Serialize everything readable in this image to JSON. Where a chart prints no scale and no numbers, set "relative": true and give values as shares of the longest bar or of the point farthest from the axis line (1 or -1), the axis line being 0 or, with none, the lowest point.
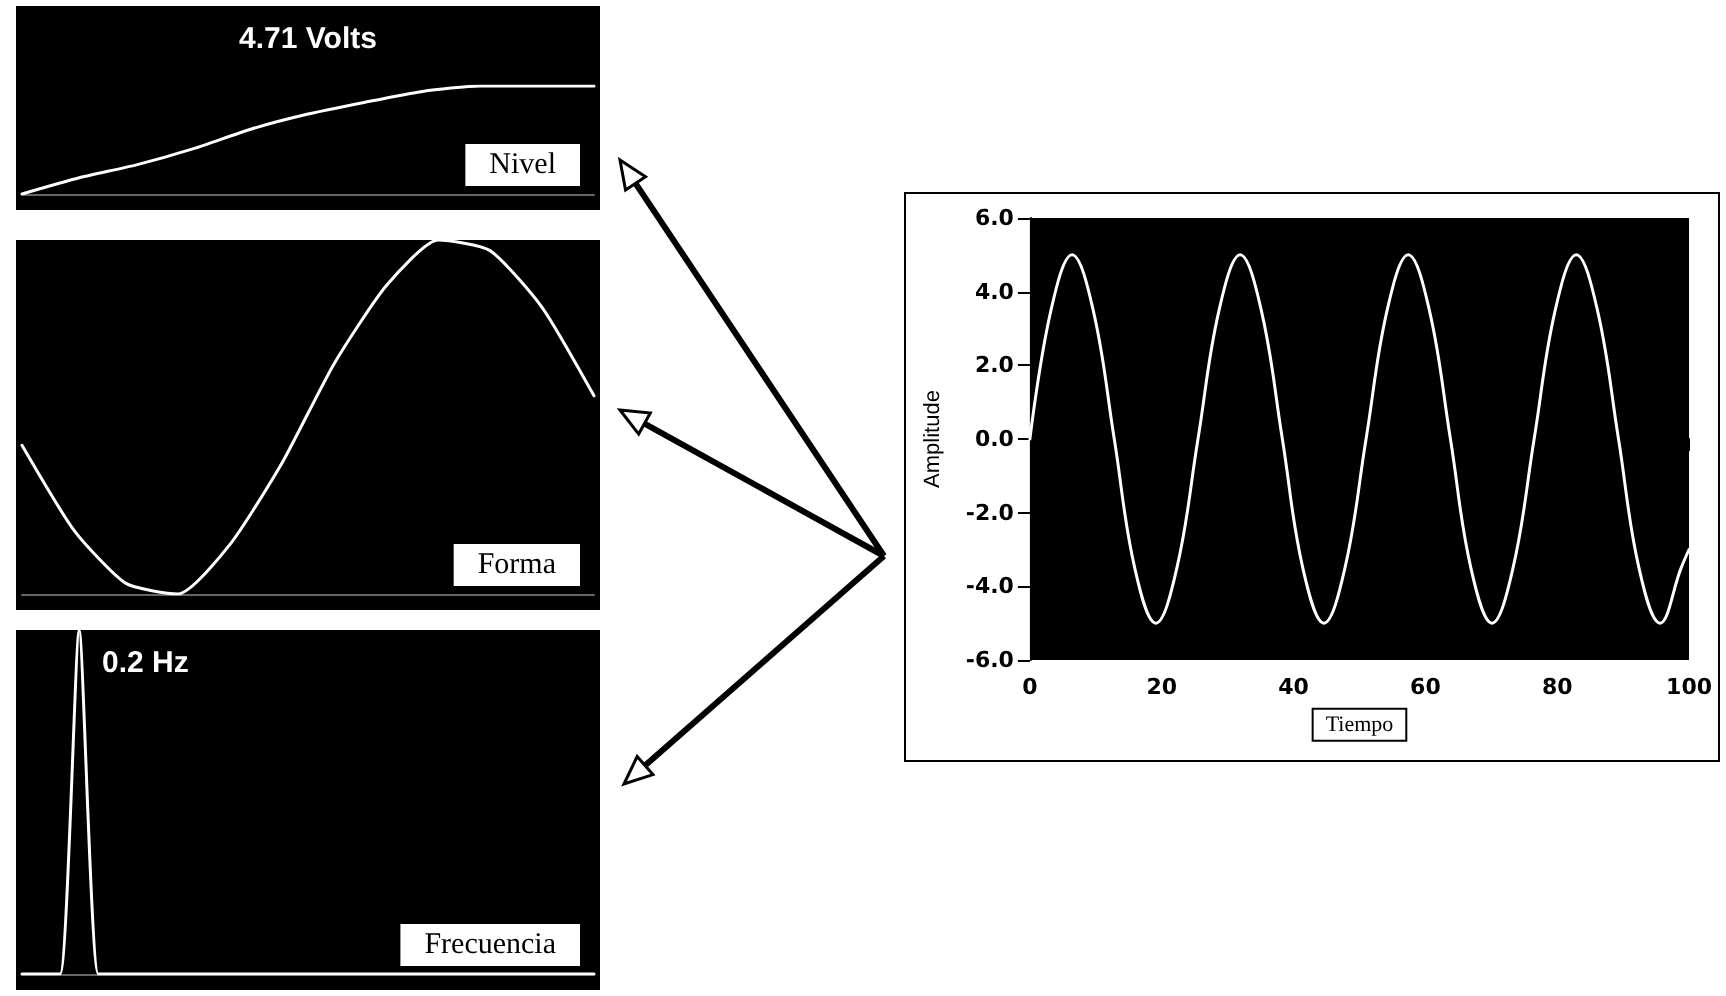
{
  "chart_data": [
    {
      "type": "line",
      "title": "4.71 Volts",
      "annotations": [
        "Nivel"
      ],
      "relative": true,
      "categories": [
        null,
        null,
        null,
        null,
        null,
        null,
        null,
        null,
        null,
        null,
        null
      ],
      "series": [
        {
          "color": "#ffffff",
          "values": [
            0,
            0.15,
            0.27,
            0.42,
            0.6,
            0.74,
            0.85,
            0.95,
            1,
            1,
            1
          ]
        }
      ]
    },
    {
      "type": "line",
      "annotations": [
        "Forma"
      ],
      "relative": true,
      "categories": [
        null,
        null,
        null,
        null,
        null,
        null,
        null,
        null,
        null,
        null,
        null,
        null
      ],
      "series": [
        {
          "color": "#ffffff",
          "values": [
            0.42,
            0.18,
            0.03,
            0,
            0.14,
            0.37,
            0.65,
            0.87,
            1,
            0.97,
            0.81,
            0.56
          ]
        }
      ]
    },
    {
      "type": "line",
      "title": "0.2 Hz",
      "annotations": [
        "Frecuencia"
      ],
      "relative": true,
      "categories": [
        null,
        null,
        null,
        null,
        null,
        null,
        null,
        null,
        null,
        null,
        null,
        null,
        null,
        null,
        null,
        null,
        null,
        null,
        null,
        null,
        null,
        null,
        null,
        null,
        null,
        null,
        null,
        null,
        null,
        null,
        null
      ],
      "series": [
        {
          "color": "#ffffff",
          "values": [
            0,
            0,
            0,
            1,
            0,
            0,
            0,
            0,
            0,
            0,
            0,
            0,
            0,
            0,
            0,
            0,
            0,
            0,
            0,
            0,
            0,
            0,
            0,
            0,
            0,
            0,
            0,
            0,
            0,
            0,
            0
          ]
        }
      ]
    },
    {
      "type": "line",
      "xlabel": "Tiempo",
      "ylabel": "Amplitude",
      "xlim": [
        0,
        100
      ],
      "xticks": [
        0,
        20,
        40,
        60,
        80,
        100
      ],
      "ylim": [
        -6,
        6
      ],
      "yticks": [
        {
          "value": -6,
          "label": "-6.0"
        },
        {
          "value": -4,
          "label": "-4.0"
        },
        {
          "value": -2,
          "label": "-2.0"
        },
        {
          "value": 0,
          "label": "0.0"
        },
        {
          "value": 2,
          "label": "2.0"
        },
        {
          "value": 4,
          "label": "4.0"
        },
        {
          "value": 6,
          "label": "6.0"
        }
      ],
      "x": [
        0,
        3.2,
        6.4,
        9.6,
        12.8,
        15.9,
        19.1,
        22.3,
        25.5,
        28.7,
        31.9,
        35.1,
        38.3,
        41.4,
        44.6,
        47.8,
        51,
        54.2,
        57.4,
        60.6,
        63.8,
        66.9,
        70.1,
        73.3,
        76.5,
        79.7,
        82.9,
        86.1,
        89.3,
        92.4,
        95.6,
        98.8,
        100
      ],
      "series": [
        {
          "color": "#ffffff",
          "values": [
            0,
            3.5,
            5,
            3.5,
            0,
            -3.5,
            -5,
            -3.5,
            0,
            3.5,
            5,
            3.5,
            0,
            -3.5,
            -5,
            -3.5,
            0,
            3.5,
            5,
            3.5,
            0,
            -3.5,
            -5,
            -3.5,
            0,
            3.5,
            5,
            3.5,
            0,
            -3.5,
            -5,
            -3.5,
            -3
          ]
        }
      ]
    }
  ]
}
